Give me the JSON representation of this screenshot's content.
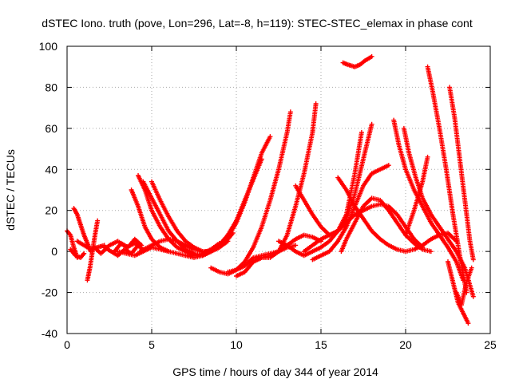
{
  "chart_data": {
    "type": "scatter",
    "title": "dSTEC Iono. truth (pove, Lon=296, Lat=-8, h=119): STEC-STEC_elemax in phase cont",
    "xlabel": "GPS time / hours of day 344 of year 2014",
    "ylabel": "dSTEC  / TECUs",
    "xlim": [
      0,
      25
    ],
    "ylim": [
      -40,
      100
    ],
    "x_ticks": [
      0,
      5,
      10,
      15,
      20,
      25
    ],
    "y_ticks": [
      -40,
      -20,
      0,
      20,
      40,
      60,
      80,
      100
    ],
    "x_tick_labels": [
      "0",
      "5",
      "10",
      "15",
      "20",
      "25"
    ],
    "y_tick_labels": [
      "-40",
      "-20",
      "0",
      "20",
      "40",
      "60",
      "80",
      "100"
    ],
    "grid": true,
    "marker": "+",
    "color": "#ff0000",
    "series": [
      {
        "x": [
          0.0,
          0.2,
          0.4,
          0.6
        ],
        "y": [
          10,
          8,
          2,
          -3
        ]
      },
      {
        "x": [
          0.2,
          0.5,
          0.8,
          1.0
        ],
        "y": [
          1,
          -2,
          -3,
          -1
        ]
      },
      {
        "x": [
          0.4,
          0.6,
          0.8,
          1.0,
          1.2,
          1.4
        ],
        "y": [
          21,
          18,
          13,
          8,
          4,
          0
        ]
      },
      {
        "x": [
          0.6,
          1.0,
          1.4,
          1.8,
          2.2
        ],
        "y": [
          5,
          3,
          1,
          2,
          3
        ]
      },
      {
        "x": [
          1.2,
          1.35,
          1.5,
          1.65,
          1.8
        ],
        "y": [
          -14,
          -8,
          0,
          8,
          15
        ]
      },
      {
        "x": [
          1.6,
          2.0,
          2.5,
          3.0,
          3.5,
          4.0,
          4.5
        ],
        "y": [
          2,
          -1,
          3,
          5,
          2,
          4,
          1
        ]
      },
      {
        "x": [
          2.2,
          2.6,
          3.0,
          3.4,
          3.8,
          4.2
        ],
        "y": [
          2,
          0,
          -2,
          1,
          -1,
          3
        ]
      },
      {
        "x": [
          2.8,
          3.2,
          3.6,
          4.0,
          4.4
        ],
        "y": [
          0,
          4,
          2,
          6,
          3
        ]
      },
      {
        "x": [
          3.0,
          3.5,
          4.0,
          4.5,
          5.0,
          5.5,
          6.0
        ],
        "y": [
          0,
          -1,
          -2,
          0,
          2,
          1,
          0
        ]
      },
      {
        "x": [
          3.8,
          4.2,
          4.6,
          5.0,
          5.5,
          6.0,
          6.5,
          7.0,
          7.5,
          8.0,
          8.5,
          9.0
        ],
        "y": [
          30,
          22,
          12,
          6,
          2,
          0,
          -1,
          -2,
          -2,
          -1,
          1,
          4
        ]
      },
      {
        "x": [
          4.2,
          4.6,
          5.0,
          5.5,
          6.0,
          6.5,
          7.0,
          7.5,
          8.0,
          8.5,
          9.0,
          9.5
        ],
        "y": [
          37,
          30,
          20,
          12,
          6,
          2,
          0,
          -2,
          -2,
          0,
          3,
          8
        ]
      },
      {
        "x": [
          4.5,
          5.0,
          5.5,
          6.0,
          6.5,
          7.0,
          7.5,
          8.0,
          8.5,
          9.0
        ],
        "y": [
          34,
          26,
          18,
          10,
          5,
          1,
          -1,
          -2,
          0,
          3
        ]
      },
      {
        "x": [
          5.0,
          5.5,
          6.0,
          6.5,
          7.0,
          7.5,
          8.0,
          8.5,
          9.0,
          9.5
        ],
        "y": [
          34,
          25,
          17,
          10,
          5,
          2,
          0,
          0,
          2,
          5
        ]
      },
      {
        "x": [
          4.3,
          5.0,
          5.5,
          6.0,
          6.5,
          7.0,
          7.5,
          8.0,
          8.5,
          9.0,
          9.5,
          9.8
        ],
        "y": [
          0,
          3,
          5,
          6,
          5,
          3,
          1,
          0,
          0,
          2,
          6,
          9
        ]
      },
      {
        "x": [
          7.0,
          7.5,
          8.0,
          8.5,
          9.0,
          9.5,
          10.0,
          10.5,
          11.0,
          11.5,
          12.0
        ],
        "y": [
          -2,
          -3,
          -2,
          0,
          3,
          7,
          14,
          24,
          36,
          48,
          56
        ]
      },
      {
        "x": [
          8.0,
          8.5,
          9.0,
          9.5,
          10.0,
          10.5,
          11.0,
          11.5
        ],
        "y": [
          -2,
          0,
          3,
          8,
          15,
          25,
          35,
          45
        ]
      },
      {
        "x": [
          8.5,
          9.0,
          9.5,
          10.0,
          10.5,
          11.0,
          11.5,
          12.0,
          12.5,
          13.0,
          13.2
        ],
        "y": [
          -8,
          -10,
          -11,
          -9,
          -5,
          2,
          12,
          25,
          40,
          58,
          68
        ]
      },
      {
        "x": [
          9.5,
          10.0,
          10.5,
          11.0,
          11.5,
          12.0,
          12.5,
          13.0,
          13.5
        ],
        "y": [
          -10,
          -9,
          -7,
          -3,
          -2,
          -1,
          0,
          2,
          3
        ]
      },
      {
        "x": [
          10.0,
          10.5,
          11.0,
          11.5,
          12.0,
          12.5,
          13.0,
          13.5,
          14.0,
          14.5,
          14.7
        ],
        "y": [
          -12,
          -10,
          -5,
          -3,
          -3,
          0,
          8,
          22,
          38,
          58,
          72
        ]
      },
      {
        "x": [
          11.0,
          11.5,
          12.0,
          12.5,
          13.0,
          13.5,
          14.0,
          14.5,
          15.0
        ],
        "y": [
          -5,
          -3,
          -2,
          0,
          3,
          6,
          8,
          7,
          5
        ]
      },
      {
        "x": [
          12.5,
          13.0,
          13.5,
          14.0,
          14.5,
          15.0,
          15.5,
          16.0,
          16.5,
          17.0,
          17.5,
          18.0
        ],
        "y": [
          5,
          3,
          0,
          -2,
          0,
          2,
          5,
          10,
          16,
          28,
          45,
          62
        ]
      },
      {
        "x": [
          13.5,
          14.0,
          14.5,
          15.0,
          15.5,
          16.0,
          16.5,
          17.0,
          17.4
        ],
        "y": [
          32,
          25,
          18,
          12,
          8,
          10,
          18,
          38,
          58
        ]
      },
      {
        "x": [
          14.0,
          14.5,
          15.0,
          15.5,
          16.0,
          16.5,
          17.0,
          17.5,
          18.0,
          18.5,
          19.0,
          19.5,
          20.0,
          20.5,
          21.0
        ],
        "y": [
          0,
          3,
          6,
          8,
          10,
          14,
          18,
          20,
          22,
          23,
          22,
          18,
          12,
          6,
          2
        ]
      },
      {
        "x": [
          14.5,
          15.0,
          15.5,
          16.0,
          16.5,
          17.0,
          17.5,
          18.0,
          18.5,
          19.0
        ],
        "y": [
          -4,
          -2,
          0,
          5,
          12,
          22,
          32,
          38,
          40,
          42
        ]
      },
      {
        "x": [
          16.0,
          16.5,
          17.0,
          17.5,
          18.0,
          18.5,
          19.0,
          19.5,
          20.0,
          20.5,
          21.0,
          21.5,
          22.0,
          22.5,
          23.0
        ],
        "y": [
          36,
          30,
          22,
          16,
          10,
          6,
          3,
          1,
          0,
          1,
          3,
          6,
          8,
          9,
          5
        ]
      },
      {
        "x": [
          16.2,
          16.5,
          17.0,
          17.5,
          18.0,
          18.5,
          19.0,
          19.5,
          20.0,
          20.5,
          21.0,
          21.5
        ],
        "y": [
          0,
          6,
          14,
          22,
          26,
          25,
          20,
          14,
          8,
          4,
          1,
          0
        ]
      },
      {
        "x": [
          16.3,
          16.6,
          17.0,
          17.3,
          17.6,
          18.0
        ],
        "y": [
          92,
          91,
          90,
          91,
          93,
          95
        ]
      },
      {
        "x": [
          19.3,
          19.6,
          20.0,
          20.5,
          21.0,
          21.5,
          22.0,
          22.5,
          23.0,
          23.4
        ],
        "y": [
          64,
          52,
          40,
          30,
          22,
          14,
          8,
          2,
          -5,
          -14
        ]
      },
      {
        "x": [
          19.9,
          20.2,
          20.6,
          21.0,
          21.5,
          22.0,
          22.5,
          23.0,
          23.5,
          24.0
        ],
        "y": [
          60,
          48,
          36,
          26,
          18,
          12,
          6,
          0,
          -8,
          -22
        ]
      },
      {
        "x": [
          20.0,
          20.5,
          21.0,
          21.3
        ],
        "y": [
          8,
          20,
          34,
          46
        ]
      },
      {
        "x": [
          21.3,
          21.6,
          22.0,
          22.4,
          22.8,
          23.2,
          23.6
        ],
        "y": [
          90,
          78,
          60,
          40,
          18,
          -2,
          -20
        ]
      },
      {
        "x": [
          22.6,
          22.9,
          23.2,
          23.5,
          23.8,
          24.0
        ],
        "y": [
          80,
          65,
          45,
          25,
          5,
          -4
        ]
      },
      {
        "x": [
          22.5,
          22.8,
          23.1,
          23.4,
          23.7
        ],
        "y": [
          -5,
          -15,
          -25,
          -30,
          -35
        ]
      },
      {
        "x": [
          23.0,
          23.3,
          23.6,
          23.9
        ],
        "y": [
          -20,
          -26,
          -15,
          -8
        ]
      }
    ]
  }
}
